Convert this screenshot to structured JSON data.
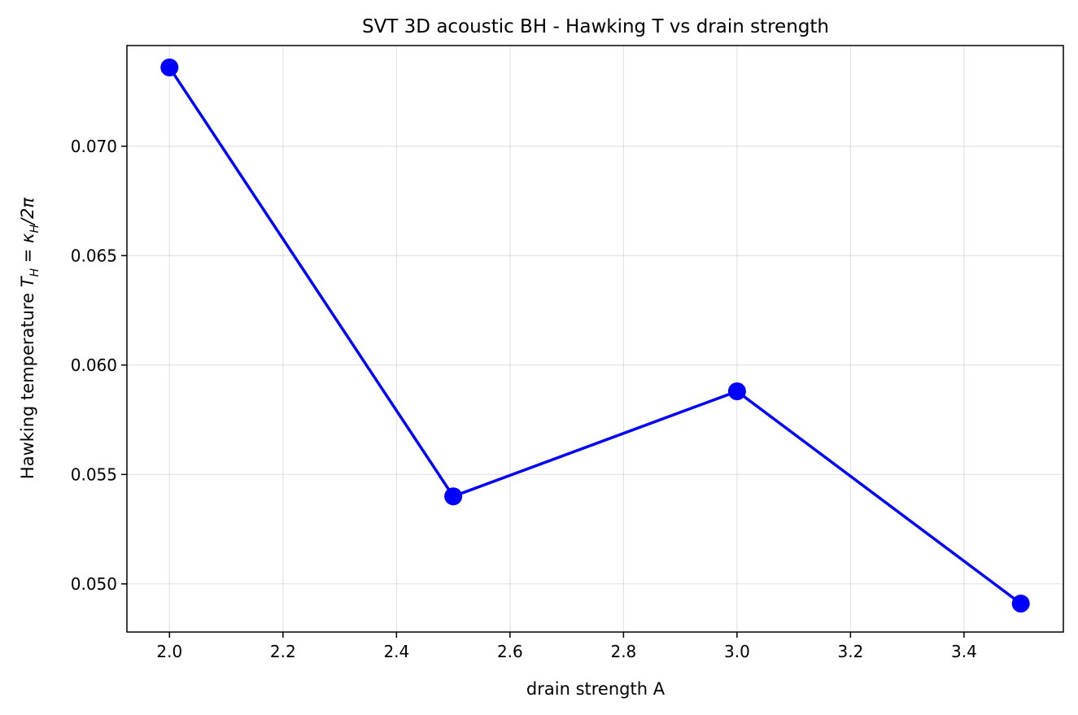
{
  "chart_data": {
    "type": "line",
    "title": "SVT 3D acoustic BH - Hawking T vs drain strength",
    "xlabel": "drain strength A",
    "ylabel_text": "Hawking temperature ",
    "ylabel_math": {
      "T": "T",
      "T_sub": "H",
      "eq": " = ",
      "kappa": "κ",
      "kappa_sub": "H",
      "rest": "/2π"
    },
    "xlim": [
      1.925,
      3.575
    ],
    "ylim": [
      0.0478,
      0.0746
    ],
    "xticks": [
      2.0,
      2.2,
      2.4,
      2.6,
      2.8,
      3.0,
      3.2,
      3.4
    ],
    "xtick_labels": [
      "2.0",
      "2.2",
      "2.4",
      "2.6",
      "2.8",
      "3.0",
      "3.2",
      "3.4"
    ],
    "yticks": [
      0.05,
      0.055,
      0.06,
      0.065,
      0.07
    ],
    "ytick_labels": [
      "0.050",
      "0.055",
      "0.060",
      "0.065",
      "0.070"
    ],
    "grid": true,
    "series": [
      {
        "color": "#0000ff",
        "marker": "circle",
        "x": [
          2.0,
          2.5,
          3.0,
          3.5
        ],
        "y": [
          0.0736,
          0.054,
          0.0588,
          0.0491
        ]
      }
    ]
  }
}
